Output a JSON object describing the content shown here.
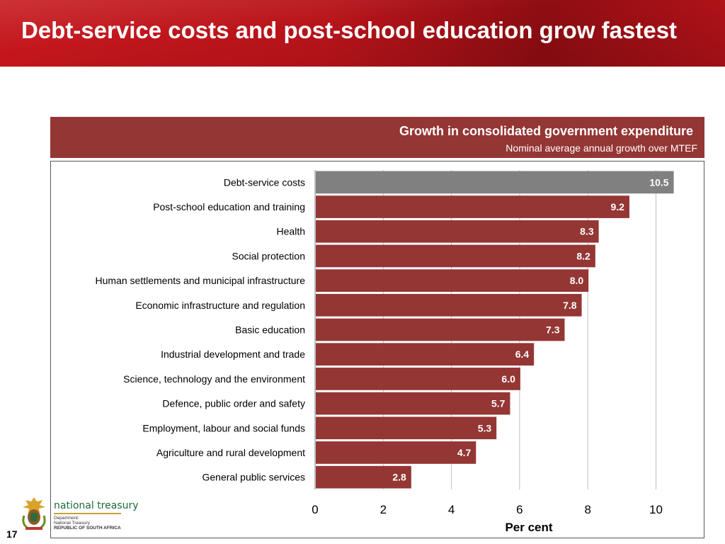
{
  "slide": {
    "title": "Debt-service costs and post-school education grow fastest",
    "page_number": "17"
  },
  "logo": {
    "name": "national treasury",
    "line1": "Department:",
    "line2": "National Treasury",
    "line3": "REPUBLIC OF SOUTH AFRICA"
  },
  "colors": {
    "title_bar": "#c4161c",
    "bar_primary": "#943634",
    "bar_highlight": "#808080"
  },
  "chart_data": {
    "type": "bar",
    "orientation": "horizontal",
    "title": "Growth in consolidated government expenditure",
    "subtitle": "Nominal average annual growth over MTEF",
    "xlabel": "Per cent",
    "ylabel": "",
    "xlim": [
      0,
      11
    ],
    "x_ticks": [
      "0",
      "2",
      "4",
      "6",
      "8",
      "10"
    ],
    "grid": "vertical",
    "legend": "none",
    "categories": [
      "Debt-service costs",
      "Post-school education and training",
      "Health",
      "Social protection",
      "Human settlements and municipal infrastructure",
      "Economic infrastructure and regulation",
      "Basic education",
      "Industrial development and trade",
      "Science, technology and the environment",
      "Defence, public order and safety",
      "Employment, labour and social funds",
      "Agriculture and rural development",
      "General public services"
    ],
    "values": [
      10.5,
      9.2,
      8.3,
      8.2,
      8.0,
      7.8,
      7.3,
      6.4,
      6.0,
      5.7,
      5.3,
      4.7,
      2.8
    ],
    "value_labels": [
      "10.5",
      "9.2",
      "8.3",
      "8.2",
      "8.0",
      "7.8",
      "7.3",
      "6.4",
      "6.0",
      "5.7",
      "5.3",
      "4.7",
      "2.8"
    ],
    "highlight_index": 0
  }
}
